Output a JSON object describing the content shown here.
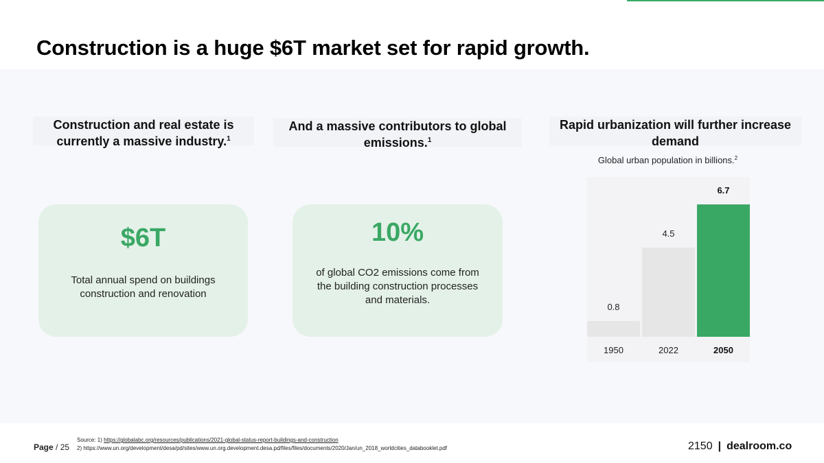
{
  "title": "Construction is a huge $6T market set for rapid growth.",
  "columns": [
    {
      "heading": "Construction and real estate is currently a massive industry.",
      "footnote": "1"
    },
    {
      "heading": "And a massive contributors to global emissions.",
      "footnote": "1"
    },
    {
      "heading": "Rapid urbanization will further increase demand",
      "footnote": ""
    }
  ],
  "cards": [
    {
      "value": "$6T",
      "description": "Total annual spend on buildings construction and renovation"
    },
    {
      "value": "10%",
      "description": "of global CO2 emissions come from the building construction processes and materials."
    }
  ],
  "chart_subtitle": {
    "text": "Global urban population in billions.",
    "footnote": "2"
  },
  "chart_data": {
    "type": "bar",
    "title": "Global urban population in billions.",
    "categories": [
      "1950",
      "2022",
      "2050"
    ],
    "values": [
      0.8,
      4.5,
      6.7
    ],
    "value_labels": [
      "0.8",
      "4.5",
      "6.7"
    ],
    "highlight_index": 2,
    "ylim": [
      0,
      6.7
    ],
    "colors": {
      "default": "#e6e6e6",
      "highlight": "#3aa865"
    }
  },
  "footer": {
    "page_label": "Page",
    "page_total": "/ 25",
    "source_prefix": "Source: 1)",
    "source_1": "https://globalabc.org/resources/publications/2021-global-status-report-buildings-and-construction",
    "source_2": "2)   https://www.un.org/development/desa/pd/sites/www.un.org.development.desa.pd/files/files/documents/2020/Jan/un_2018_worldcities_databooklet.pdf",
    "logo_left": "2150",
    "logo_sep": "|",
    "logo_right": "dealroom.co"
  },
  "colors": {
    "accent": "#3aa865",
    "card_bg": "#e4f1e8",
    "content_bg": "#f7f8fc"
  }
}
